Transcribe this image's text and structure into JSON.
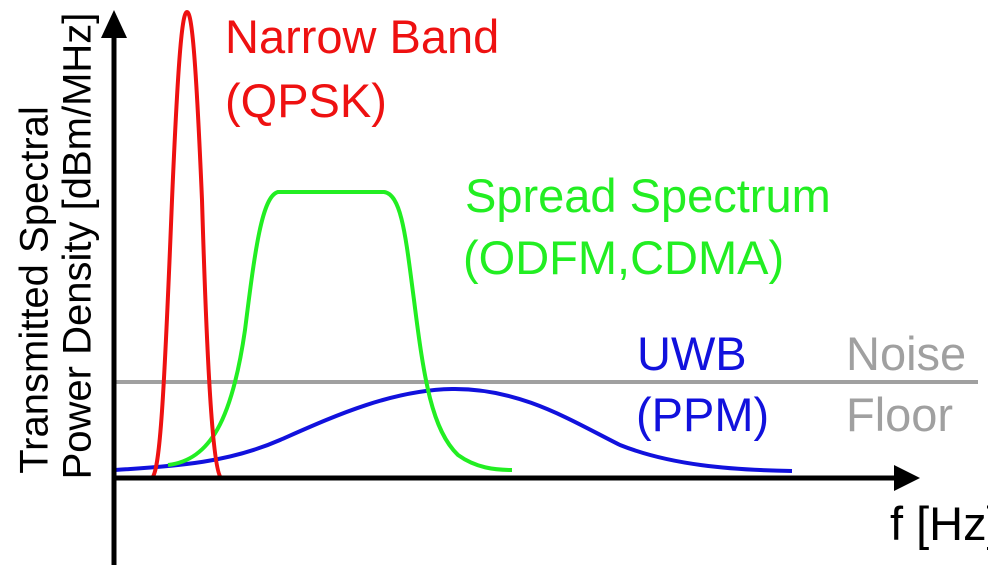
{
  "axes": {
    "y_label_line1": "Transmitted Spectral",
    "y_label_line2": "Power Density [dBm/MHz]",
    "x_label": "f [Hz]"
  },
  "curves": {
    "narrow_band": {
      "line1": "Narrow Band",
      "line2": "(QPSK)",
      "color": "#ee1111"
    },
    "spread_spectrum": {
      "line1": "Spread Spectrum",
      "line2": "(ODFM,CDMA)",
      "color": "#22ee22"
    },
    "uwb": {
      "line1": "UWB",
      "line2": "(PPM)",
      "color": "#1111dd"
    },
    "noise_floor": {
      "line1": "Noise",
      "line2": "Floor",
      "color": "#a0a0a0"
    }
  },
  "colors": {
    "axis": "#000000"
  }
}
